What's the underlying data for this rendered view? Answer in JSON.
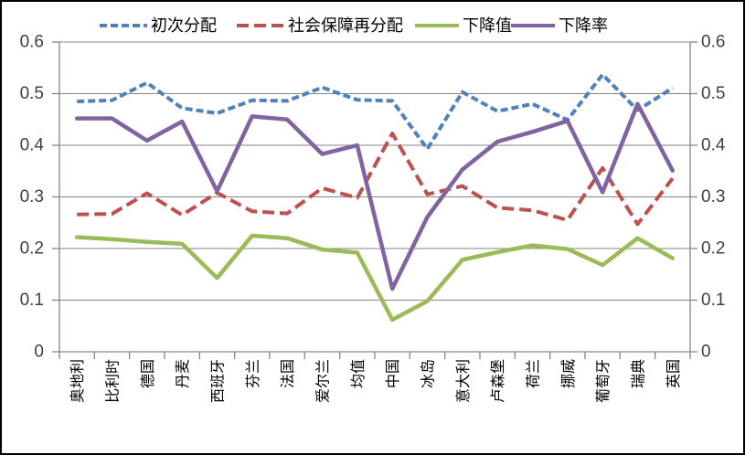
{
  "chart_data": {
    "type": "line",
    "title": "",
    "xlabel": "",
    "ylabel": "",
    "ylim": [
      0,
      0.6
    ],
    "grid": true,
    "legend_position": "top",
    "dual_y_axis": true,
    "yticks": [
      "0.6",
      "0.5",
      "0.4",
      "0.3",
      "0.2",
      "0.1",
      "0"
    ],
    "categories": [
      "奥地利",
      "比利时",
      "德国",
      "丹麦",
      "西班牙",
      "芬兰",
      "法国",
      "爱尔兰",
      "均值",
      "中国",
      "冰岛",
      "意大利",
      "卢森堡",
      "荷兰",
      "挪威",
      "葡萄牙",
      "瑞典",
      "英国"
    ],
    "series": [
      {
        "name": "初次分配",
        "color": "#4F81BD",
        "line_style": "dashed-short",
        "values": [
          0.485,
          0.487,
          0.521,
          0.472,
          0.462,
          0.487,
          0.486,
          0.512,
          0.488,
          0.486,
          0.393,
          0.503,
          0.466,
          0.48,
          0.449,
          0.537,
          0.468,
          0.511
        ]
      },
      {
        "name": "社会保障再分配",
        "color": "#C0504D",
        "line_style": "dashed-long",
        "values": [
          0.266,
          0.267,
          0.307,
          0.265,
          0.308,
          0.272,
          0.268,
          0.317,
          0.298,
          0.423,
          0.305,
          0.321,
          0.279,
          0.274,
          0.255,
          0.356,
          0.247,
          0.336
        ]
      },
      {
        "name": "下降值",
        "color": "#9BBB59",
        "line_style": "solid",
        "values": [
          0.222,
          0.218,
          0.213,
          0.209,
          0.143,
          0.225,
          0.22,
          0.198,
          0.192,
          0.062,
          0.098,
          0.178,
          0.193,
          0.206,
          0.199,
          0.168,
          0.22,
          0.181
        ]
      },
      {
        "name": "下降率",
        "color": "#8064A2",
        "line_style": "solid",
        "values": [
          0.452,
          0.452,
          0.409,
          0.446,
          0.311,
          0.456,
          0.45,
          0.383,
          0.4,
          0.122,
          0.261,
          0.353,
          0.407,
          0.426,
          0.447,
          0.309,
          0.48,
          0.351
        ]
      }
    ],
    "colors": {
      "axis": "#868686",
      "gridline": "#868686",
      "tick_label": "#404040",
      "category_label": "#000000",
      "legend_label": "#000000",
      "background": "#ffffff",
      "border": "#000000"
    }
  }
}
